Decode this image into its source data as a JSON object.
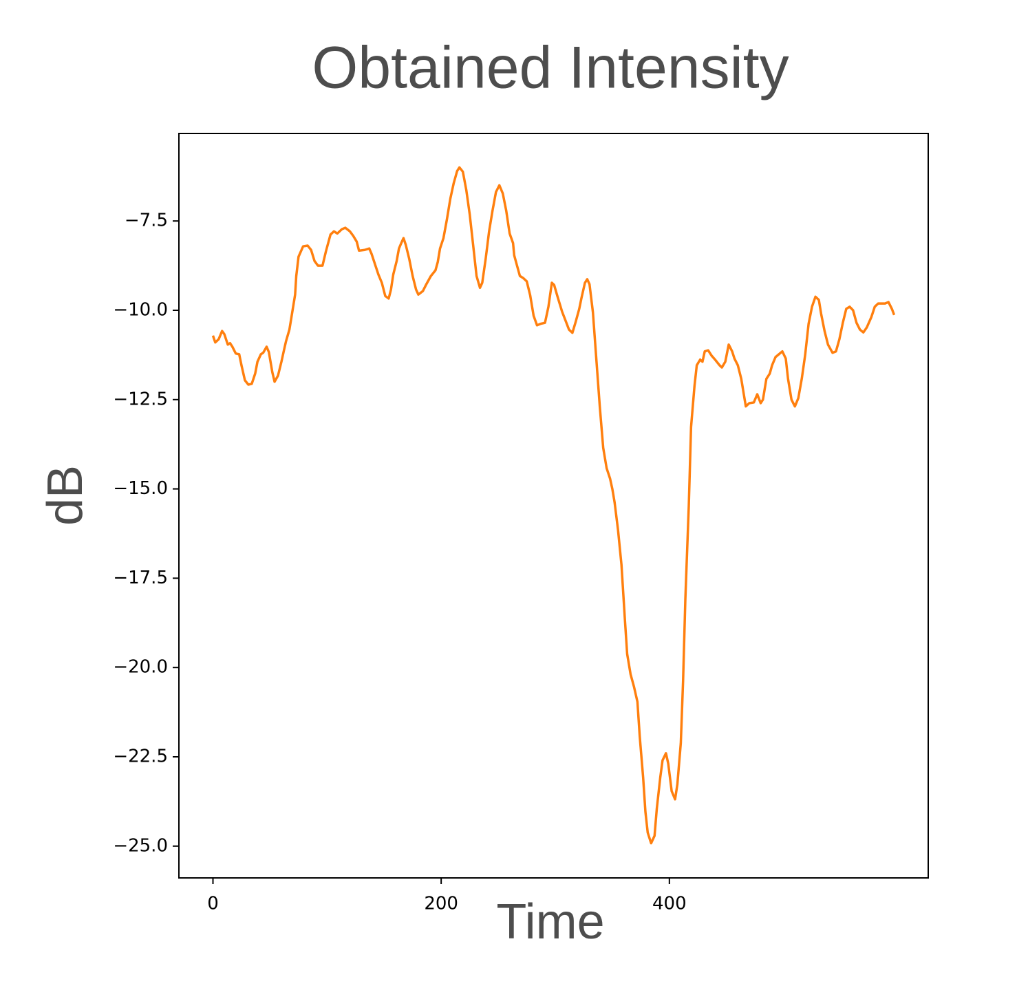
{
  "chart_data": {
    "type": "line",
    "title": "Obtained Intensity",
    "x_label": "Time",
    "y_label": "dB",
    "x": [
      0,
      2,
      5,
      8,
      10,
      13,
      15,
      17,
      20,
      23,
      25,
      28,
      31,
      34,
      37,
      39,
      42,
      44,
      47,
      49,
      52,
      54,
      57,
      60,
      62,
      64,
      67,
      69,
      72,
      73,
      75,
      79,
      83,
      86,
      89,
      92,
      96,
      99,
      103,
      106,
      109,
      113,
      116,
      120,
      123,
      126,
      128,
      133,
      137,
      139,
      142,
      145,
      148,
      151,
      154,
      156,
      158,
      161,
      163,
      165,
      167,
      169,
      172,
      175,
      178,
      180,
      184,
      187,
      191,
      195,
      197,
      199,
      202,
      205,
      208,
      211,
      214,
      216,
      219,
      222,
      225,
      228,
      231,
      234,
      236,
      239,
      242,
      245,
      248,
      251,
      254,
      257,
      260,
      263,
      264,
      267,
      269,
      272,
      275,
      278,
      281,
      284,
      287,
      291,
      294,
      297,
      299,
      302,
      306,
      309,
      312,
      315,
      318,
      321,
      323,
      326,
      328,
      330,
      333,
      336,
      339,
      342,
      345,
      348,
      350,
      352,
      355,
      358,
      361,
      363,
      366,
      369,
      372,
      374,
      377,
      379,
      381,
      384,
      387,
      389,
      392,
      394,
      397,
      399,
      402,
      405,
      407,
      410,
      412,
      414,
      417,
      419,
      422,
      424,
      427,
      429,
      431,
      434,
      437,
      440,
      444,
      446,
      449,
      452,
      455,
      457,
      460,
      463,
      465,
      467,
      470,
      474,
      477,
      480,
      482,
      485,
      488,
      490,
      493,
      496,
      499,
      502,
      504,
      507,
      510,
      513,
      516,
      519,
      522,
      525,
      528,
      531,
      533,
      536,
      539,
      543,
      546,
      549,
      552,
      555,
      558,
      561,
      564,
      567,
      570,
      573,
      577,
      580,
      583,
      586,
      589,
      592,
      595,
      597
    ],
    "series": [
      {
        "color": "#ff7f0e",
        "values": [
          -10.71,
          -10.9,
          -10.81,
          -10.58,
          -10.67,
          -10.96,
          -10.92,
          -11.02,
          -11.21,
          -11.23,
          -11.54,
          -11.96,
          -12.08,
          -12.06,
          -11.77,
          -11.44,
          -11.23,
          -11.19,
          -11.02,
          -11.17,
          -11.73,
          -12.0,
          -11.83,
          -11.44,
          -11.15,
          -10.87,
          -10.54,
          -10.15,
          -9.56,
          -9.04,
          -8.5,
          -8.21,
          -8.19,
          -8.31,
          -8.62,
          -8.75,
          -8.75,
          -8.35,
          -7.88,
          -7.79,
          -7.85,
          -7.73,
          -7.69,
          -7.79,
          -7.92,
          -8.08,
          -8.33,
          -8.31,
          -8.27,
          -8.42,
          -8.71,
          -9.0,
          -9.23,
          -9.6,
          -9.67,
          -9.42,
          -9.0,
          -8.62,
          -8.27,
          -8.12,
          -7.98,
          -8.17,
          -8.56,
          -9.04,
          -9.42,
          -9.56,
          -9.46,
          -9.27,
          -9.04,
          -8.88,
          -8.65,
          -8.27,
          -7.98,
          -7.46,
          -6.88,
          -6.44,
          -6.1,
          -6.0,
          -6.12,
          -6.63,
          -7.31,
          -8.17,
          -9.04,
          -9.37,
          -9.23,
          -8.56,
          -7.79,
          -7.21,
          -6.69,
          -6.5,
          -6.73,
          -7.21,
          -7.85,
          -8.12,
          -8.46,
          -8.81,
          -9.04,
          -9.1,
          -9.19,
          -9.58,
          -10.15,
          -10.42,
          -10.38,
          -10.35,
          -9.9,
          -9.23,
          -9.29,
          -9.62,
          -10.04,
          -10.29,
          -10.54,
          -10.63,
          -10.31,
          -9.96,
          -9.65,
          -9.23,
          -9.13,
          -9.27,
          -10.06,
          -11.38,
          -12.69,
          -13.85,
          -14.42,
          -14.71,
          -15.0,
          -15.38,
          -16.15,
          -17.12,
          -18.65,
          -19.62,
          -20.19,
          -20.54,
          -20.96,
          -21.92,
          -23.08,
          -24.04,
          -24.62,
          -24.92,
          -24.71,
          -23.94,
          -23.08,
          -22.6,
          -22.4,
          -22.69,
          -23.46,
          -23.69,
          -23.27,
          -22.12,
          -20.38,
          -18.08,
          -15.48,
          -13.27,
          -12.12,
          -11.54,
          -11.38,
          -11.44,
          -11.15,
          -11.12,
          -11.27,
          -11.38,
          -11.54,
          -11.6,
          -11.44,
          -10.96,
          -11.15,
          -11.35,
          -11.54,
          -11.92,
          -12.31,
          -12.69,
          -12.6,
          -12.58,
          -12.35,
          -12.6,
          -12.5,
          -11.92,
          -11.77,
          -11.54,
          -11.31,
          -11.23,
          -11.15,
          -11.35,
          -11.92,
          -12.5,
          -12.69,
          -12.46,
          -11.92,
          -11.25,
          -10.38,
          -9.9,
          -9.62,
          -9.71,
          -10.1,
          -10.58,
          -10.96,
          -11.19,
          -11.15,
          -10.81,
          -10.35,
          -9.96,
          -9.9,
          -10.0,
          -10.35,
          -10.54,
          -10.62,
          -10.48,
          -10.19,
          -9.9,
          -9.81,
          -9.81,
          -9.81,
          -9.77,
          -9.96,
          -10.13
        ]
      }
    ],
    "xlim": [
      -29.85,
      626.85
    ],
    "xticks": [
      0,
      200,
      400
    ],
    "ylim": [
      -25.89,
      -5.05
    ],
    "yticks": [
      {
        "value": -25,
        "label": "−25.0"
      },
      {
        "value": -22.5,
        "label": "−22.5"
      },
      {
        "value": -20,
        "label": "−20.0"
      },
      {
        "value": -17.5,
        "label": "−17.5"
      },
      {
        "value": -15,
        "label": "−15.0"
      },
      {
        "value": -12.5,
        "label": "−12.5"
      },
      {
        "value": -10,
        "label": "−10.0"
      },
      {
        "value": -7.5,
        "label": "−7.5"
      }
    ]
  }
}
